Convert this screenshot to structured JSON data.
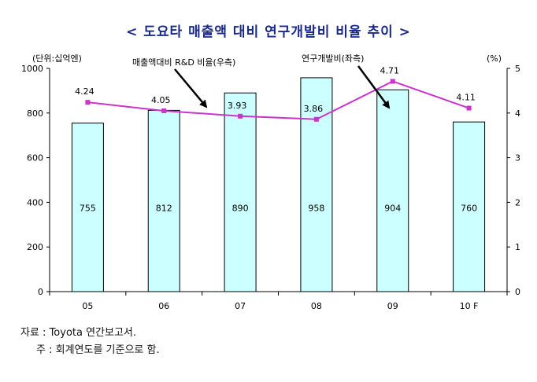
{
  "title": "< 도요타 매출액 대비 연구개발비 비율 추이 >",
  "chart_data": {
    "type": "bar+line",
    "categories": [
      "05",
      "06",
      "07",
      "08",
      "09",
      "10 F"
    ],
    "series": [
      {
        "name": "연구개발비(좌측)",
        "type": "bar",
        "axis": "left",
        "values": [
          755,
          812,
          890,
          958,
          904,
          760
        ]
      },
      {
        "name": "매출액대비 R&D 비율(우측)",
        "type": "line",
        "axis": "right",
        "values": [
          4.24,
          4.05,
          3.93,
          3.86,
          4.71,
          4.11
        ]
      }
    ],
    "left_axis": {
      "label": "(단위:십억엔)",
      "min": 0,
      "max": 1000,
      "ticks": [
        0,
        200,
        400,
        600,
        800,
        1000
      ]
    },
    "right_axis": {
      "label": "(%)",
      "min": 0,
      "max": 5,
      "ticks": [
        0,
        1,
        2,
        3,
        4,
        5
      ]
    },
    "annotations": {
      "line_label": "매출액대비 R&D 비율(우측)",
      "bar_label": "연구개발비(좌측)"
    },
    "colors": {
      "bar_fill": "#ccffff",
      "bar_stroke": "#000000",
      "line": "#cc33cc",
      "title": "#1a2a8c"
    }
  },
  "source": "자료 : Toyota 연간보고서.",
  "note": "주 : 회계연도를 기준으로 함."
}
